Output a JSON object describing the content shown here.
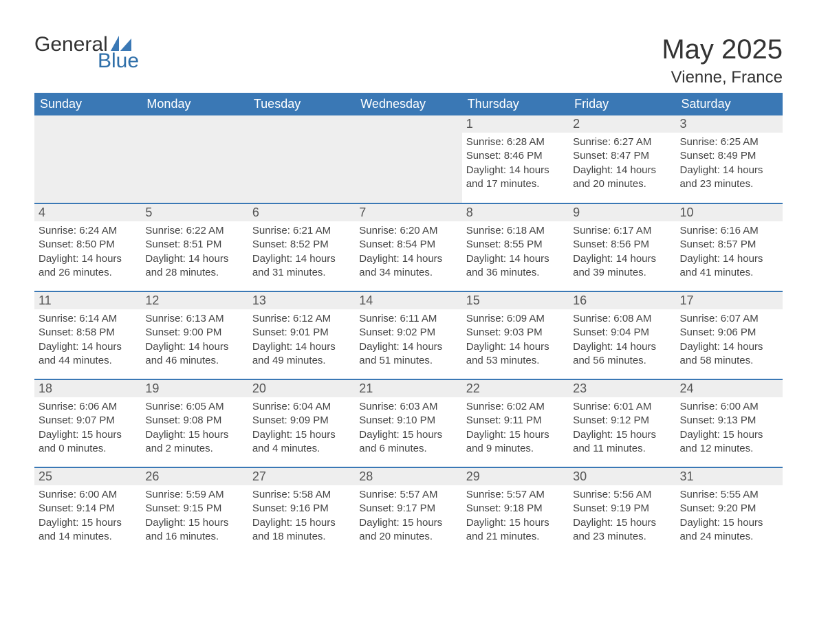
{
  "logo": {
    "general": "General",
    "blue": "Blue"
  },
  "heading": {
    "month": "May 2025",
    "location": "Vienne, France"
  },
  "colors": {
    "header_bg": "#3a78b5",
    "header_text": "#ffffff",
    "daynum_bg": "#eeeeee",
    "daynum_text": "#555555",
    "body_text": "#444444",
    "logo_blue": "#2f6fa9",
    "rule": "#3a78b5",
    "page_bg": "#ffffff"
  },
  "typography": {
    "title_fontsize_pt": 30,
    "location_fontsize_pt": 18,
    "header_fontsize_pt": 14,
    "daynum_fontsize_pt": 14,
    "body_fontsize_pt": 11
  },
  "calendar": {
    "type": "table",
    "columns": 7,
    "rows": 5,
    "weekdays": [
      "Sunday",
      "Monday",
      "Tuesday",
      "Wednesday",
      "Thursday",
      "Friday",
      "Saturday"
    ],
    "days": [
      null,
      null,
      null,
      null,
      {
        "n": "1",
        "sunrise": "6:28 AM",
        "sunset": "8:46 PM",
        "daylight": "14 hours and 17 minutes."
      },
      {
        "n": "2",
        "sunrise": "6:27 AM",
        "sunset": "8:47 PM",
        "daylight": "14 hours and 20 minutes."
      },
      {
        "n": "3",
        "sunrise": "6:25 AM",
        "sunset": "8:49 PM",
        "daylight": "14 hours and 23 minutes."
      },
      {
        "n": "4",
        "sunrise": "6:24 AM",
        "sunset": "8:50 PM",
        "daylight": "14 hours and 26 minutes."
      },
      {
        "n": "5",
        "sunrise": "6:22 AM",
        "sunset": "8:51 PM",
        "daylight": "14 hours and 28 minutes."
      },
      {
        "n": "6",
        "sunrise": "6:21 AM",
        "sunset": "8:52 PM",
        "daylight": "14 hours and 31 minutes."
      },
      {
        "n": "7",
        "sunrise": "6:20 AM",
        "sunset": "8:54 PM",
        "daylight": "14 hours and 34 minutes."
      },
      {
        "n": "8",
        "sunrise": "6:18 AM",
        "sunset": "8:55 PM",
        "daylight": "14 hours and 36 minutes."
      },
      {
        "n": "9",
        "sunrise": "6:17 AM",
        "sunset": "8:56 PM",
        "daylight": "14 hours and 39 minutes."
      },
      {
        "n": "10",
        "sunrise": "6:16 AM",
        "sunset": "8:57 PM",
        "daylight": "14 hours and 41 minutes."
      },
      {
        "n": "11",
        "sunrise": "6:14 AM",
        "sunset": "8:58 PM",
        "daylight": "14 hours and 44 minutes."
      },
      {
        "n": "12",
        "sunrise": "6:13 AM",
        "sunset": "9:00 PM",
        "daylight": "14 hours and 46 minutes."
      },
      {
        "n": "13",
        "sunrise": "6:12 AM",
        "sunset": "9:01 PM",
        "daylight": "14 hours and 49 minutes."
      },
      {
        "n": "14",
        "sunrise": "6:11 AM",
        "sunset": "9:02 PM",
        "daylight": "14 hours and 51 minutes."
      },
      {
        "n": "15",
        "sunrise": "6:09 AM",
        "sunset": "9:03 PM",
        "daylight": "14 hours and 53 minutes."
      },
      {
        "n": "16",
        "sunrise": "6:08 AM",
        "sunset": "9:04 PM",
        "daylight": "14 hours and 56 minutes."
      },
      {
        "n": "17",
        "sunrise": "6:07 AM",
        "sunset": "9:06 PM",
        "daylight": "14 hours and 58 minutes."
      },
      {
        "n": "18",
        "sunrise": "6:06 AM",
        "sunset": "9:07 PM",
        "daylight": "15 hours and 0 minutes."
      },
      {
        "n": "19",
        "sunrise": "6:05 AM",
        "sunset": "9:08 PM",
        "daylight": "15 hours and 2 minutes."
      },
      {
        "n": "20",
        "sunrise": "6:04 AM",
        "sunset": "9:09 PM",
        "daylight": "15 hours and 4 minutes."
      },
      {
        "n": "21",
        "sunrise": "6:03 AM",
        "sunset": "9:10 PM",
        "daylight": "15 hours and 6 minutes."
      },
      {
        "n": "22",
        "sunrise": "6:02 AM",
        "sunset": "9:11 PM",
        "daylight": "15 hours and 9 minutes."
      },
      {
        "n": "23",
        "sunrise": "6:01 AM",
        "sunset": "9:12 PM",
        "daylight": "15 hours and 11 minutes."
      },
      {
        "n": "24",
        "sunrise": "6:00 AM",
        "sunset": "9:13 PM",
        "daylight": "15 hours and 12 minutes."
      },
      {
        "n": "25",
        "sunrise": "6:00 AM",
        "sunset": "9:14 PM",
        "daylight": "15 hours and 14 minutes."
      },
      {
        "n": "26",
        "sunrise": "5:59 AM",
        "sunset": "9:15 PM",
        "daylight": "15 hours and 16 minutes."
      },
      {
        "n": "27",
        "sunrise": "5:58 AM",
        "sunset": "9:16 PM",
        "daylight": "15 hours and 18 minutes."
      },
      {
        "n": "28",
        "sunrise": "5:57 AM",
        "sunset": "9:17 PM",
        "daylight": "15 hours and 20 minutes."
      },
      {
        "n": "29",
        "sunrise": "5:57 AM",
        "sunset": "9:18 PM",
        "daylight": "15 hours and 21 minutes."
      },
      {
        "n": "30",
        "sunrise": "5:56 AM",
        "sunset": "9:19 PM",
        "daylight": "15 hours and 23 minutes."
      },
      {
        "n": "31",
        "sunrise": "5:55 AM",
        "sunset": "9:20 PM",
        "daylight": "15 hours and 24 minutes."
      }
    ],
    "labels": {
      "sunrise": "Sunrise: ",
      "sunset": "Sunset: ",
      "daylight": "Daylight: "
    }
  }
}
